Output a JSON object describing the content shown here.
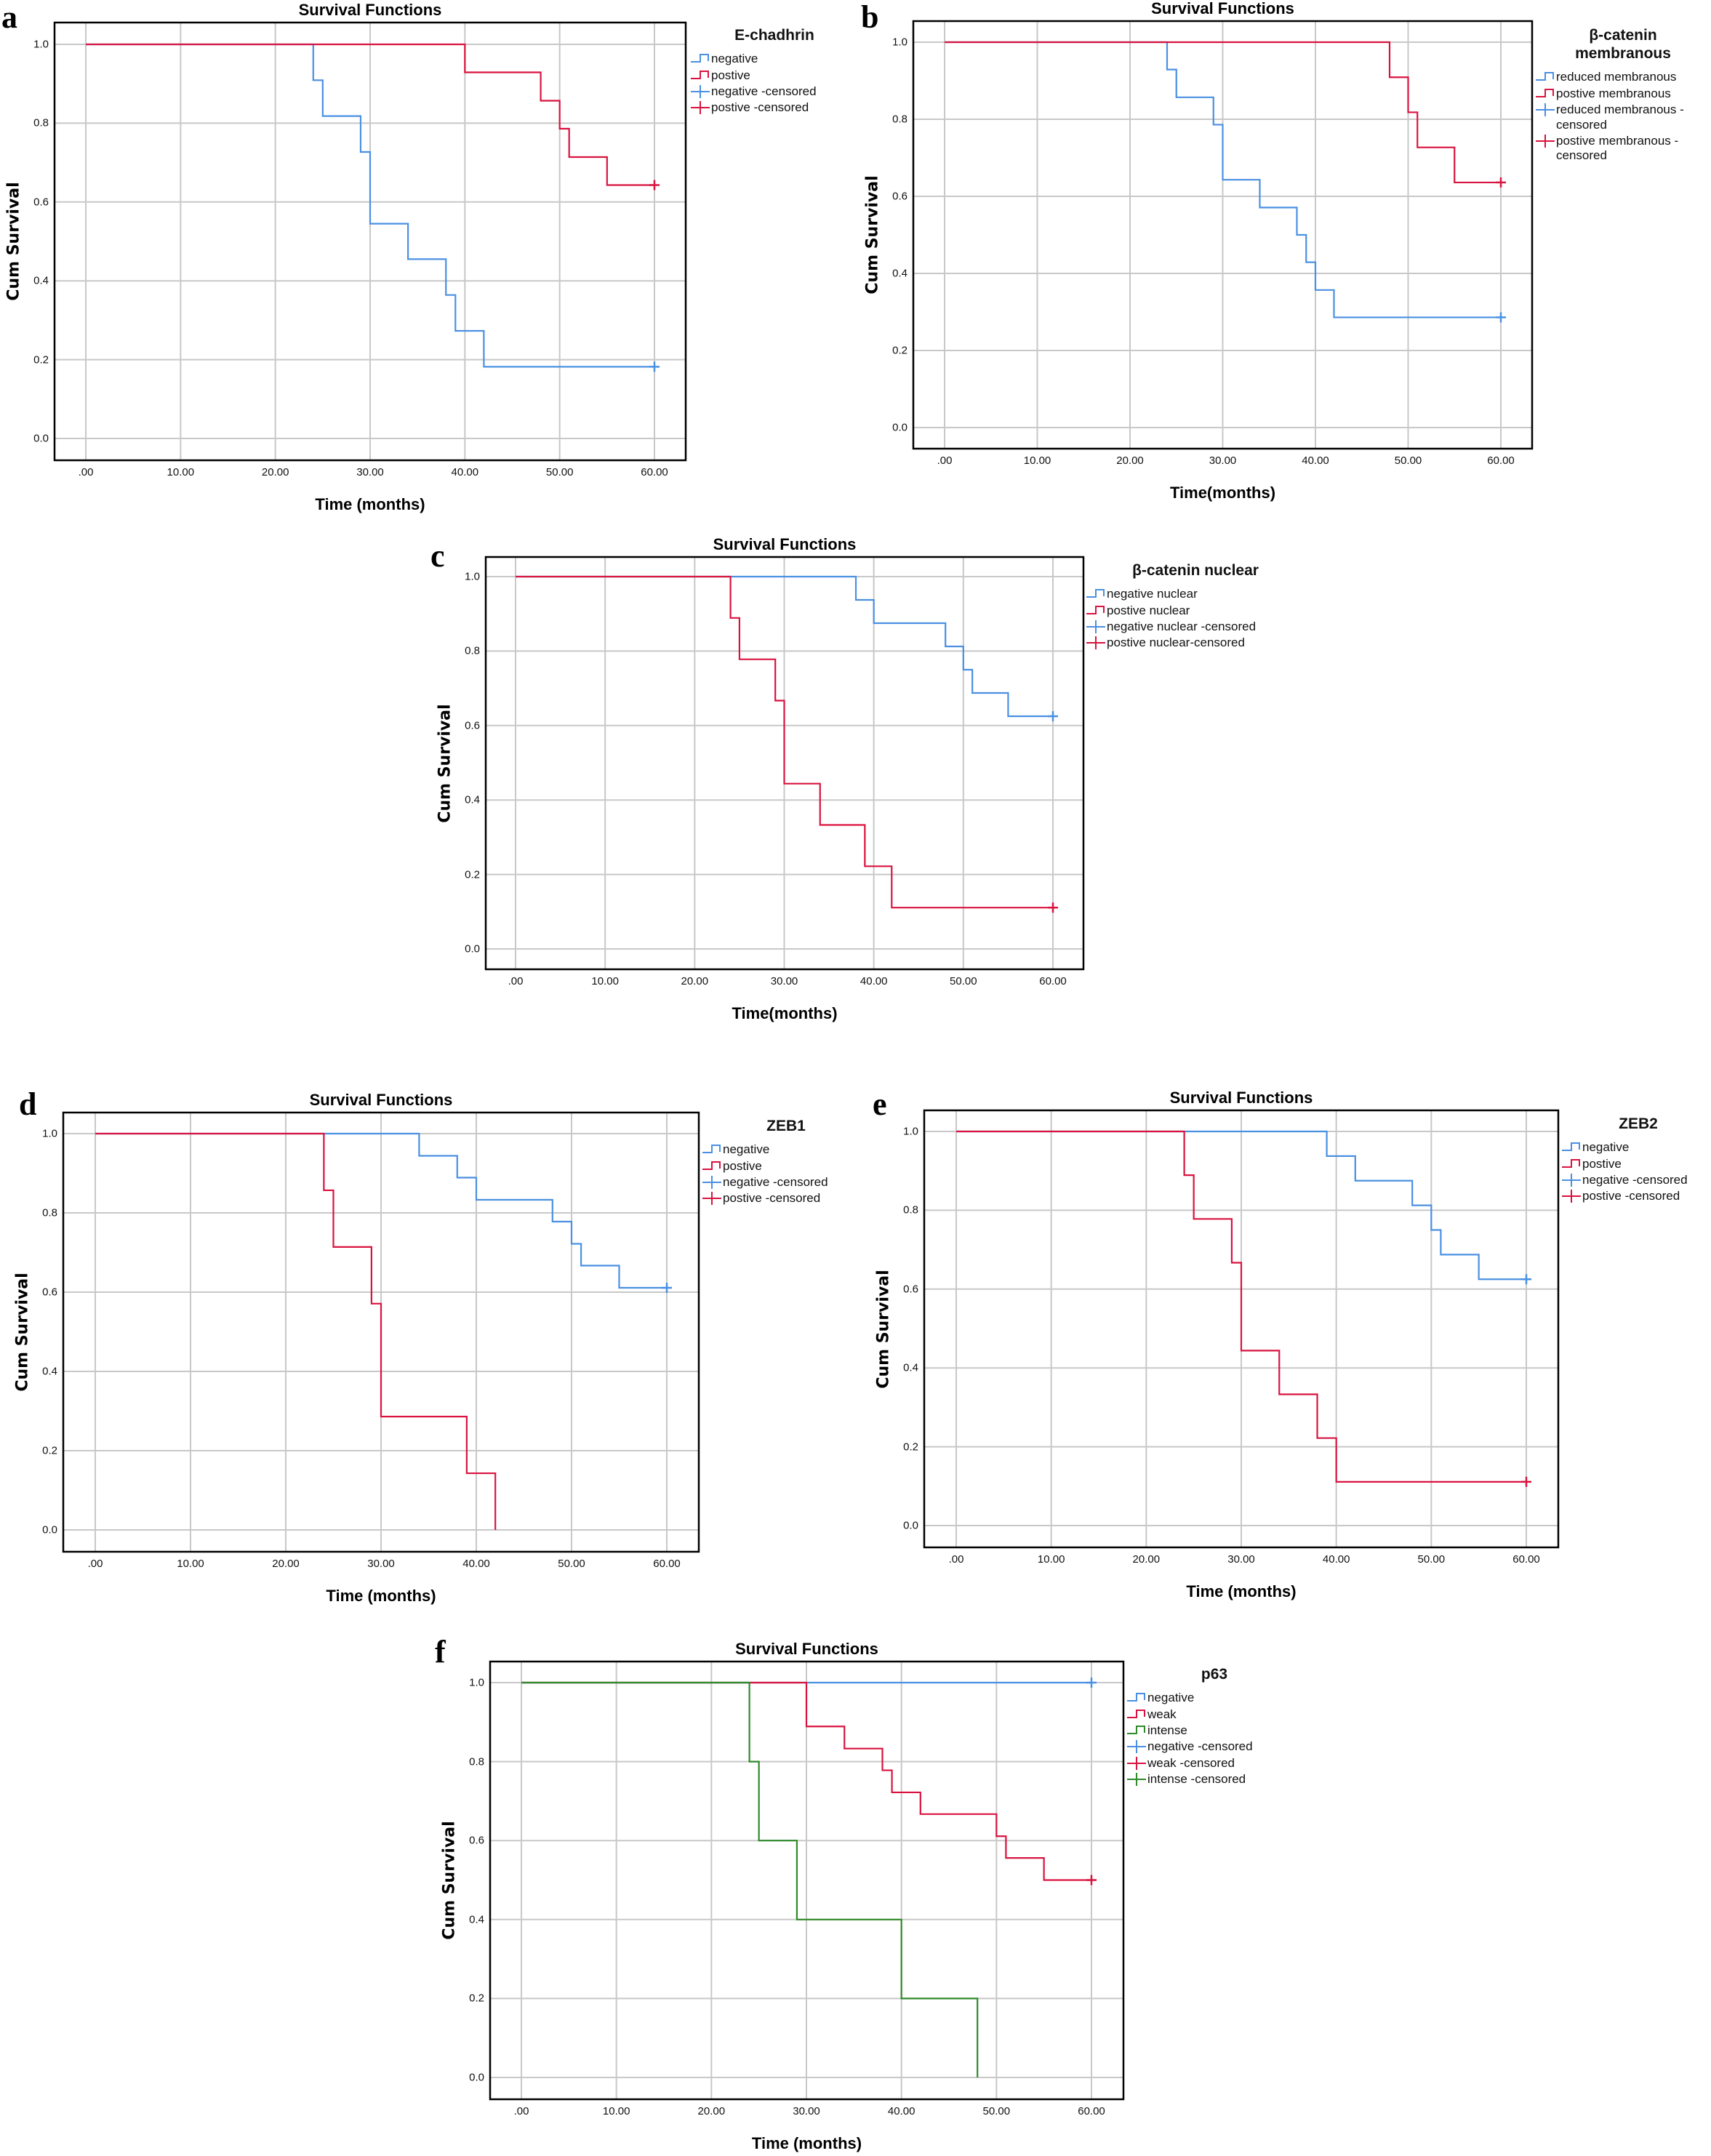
{
  "colors": {
    "blue": "#4a90e2",
    "red": "#d9133f",
    "green": "#2f8a2a",
    "grid": "#c8c8c8",
    "frame": "#000000"
  },
  "chart_data": [
    {
      "id": "a",
      "panel_label": "a",
      "type": "line",
      "step": true,
      "title": "Survival Functions",
      "xlabel": "Time (months)",
      "ylabel": "Cum Survival",
      "xlim": [
        0,
        60
      ],
      "ylim": [
        0,
        1
      ],
      "xticks": [
        ".00",
        "10.00",
        "20.00",
        "30.00",
        "40.00",
        "50.00",
        "60.00"
      ],
      "yticks": [
        "0.0",
        "0.2",
        "0.4",
        "0.6",
        "0.8",
        "1.0"
      ],
      "grid": true,
      "legend": {
        "title": "E-chadhrin",
        "placement": "right",
        "entries": [
          {
            "label": "negative",
            "kind": "step",
            "color": "blue"
          },
          {
            "label": "postive",
            "kind": "step",
            "color": "red"
          },
          {
            "label": "negative -censored",
            "kind": "censor",
            "color": "blue"
          },
          {
            "label": "postive -censored",
            "kind": "censor",
            "color": "red"
          }
        ]
      },
      "series": [
        {
          "name": "negative",
          "color": "blue",
          "x": [
            0,
            24,
            25,
            29,
            30,
            34,
            38,
            39,
            42
          ],
          "y": [
            1.0,
            0.909,
            0.818,
            0.727,
            0.545,
            0.455,
            0.364,
            0.273,
            0.182
          ],
          "end": 60,
          "censored": [
            [
              60,
              0.182
            ]
          ]
        },
        {
          "name": "postive",
          "color": "red",
          "x": [
            0,
            40,
            48,
            50,
            51,
            55
          ],
          "y": [
            1.0,
            0.929,
            0.857,
            0.786,
            0.714,
            0.643
          ],
          "end": 60,
          "censored": [
            [
              60,
              0.643
            ]
          ]
        }
      ]
    },
    {
      "id": "b",
      "panel_label": "b",
      "type": "line",
      "step": true,
      "title": "Survival Functions",
      "xlabel": "Time(months)",
      "ylabel": "Cum Survival",
      "xlim": [
        0,
        60
      ],
      "ylim": [
        0,
        1
      ],
      "xticks": [
        ".00",
        "10.00",
        "20.00",
        "30.00",
        "40.00",
        "50.00",
        "60.00"
      ],
      "yticks": [
        "0.0",
        "0.2",
        "0.4",
        "0.6",
        "0.8",
        "1.0"
      ],
      "grid": true,
      "legend": {
        "title": "β-catenin\nmembranous",
        "placement": "right",
        "entries": [
          {
            "label": "reduced membranous",
            "kind": "step",
            "color": "blue"
          },
          {
            "label": "postive membranous",
            "kind": "step",
            "color": "red"
          },
          {
            "label": "reduced membranous -\ncensored",
            "kind": "censor",
            "color": "blue"
          },
          {
            "label": "postive membranous -\ncensored",
            "kind": "censor",
            "color": "red"
          }
        ]
      },
      "series": [
        {
          "name": "reduced membranous",
          "color": "blue",
          "x": [
            0,
            24,
            25,
            29,
            30,
            34,
            38,
            39,
            40,
            42
          ],
          "y": [
            1.0,
            0.929,
            0.857,
            0.786,
            0.643,
            0.571,
            0.5,
            0.429,
            0.357,
            0.286
          ],
          "end": 60,
          "censored": [
            [
              60,
              0.286
            ]
          ]
        },
        {
          "name": "postive membranous",
          "color": "red",
          "x": [
            0,
            48,
            50,
            51,
            55
          ],
          "y": [
            1.0,
            0.909,
            0.818,
            0.727,
            0.636
          ],
          "end": 60,
          "censored": [
            [
              60,
              0.636
            ]
          ]
        }
      ]
    },
    {
      "id": "c",
      "panel_label": "c",
      "type": "line",
      "step": true,
      "title": "Survival Functions",
      "xlabel": "Time(months)",
      "ylabel": "Cum Survival",
      "xlim": [
        0,
        60
      ],
      "ylim": [
        0,
        1
      ],
      "xticks": [
        ".00",
        "10.00",
        "20.00",
        "30.00",
        "40.00",
        "50.00",
        "60.00"
      ],
      "yticks": [
        "0.0",
        "0.2",
        "0.4",
        "0.6",
        "0.8",
        "1.0"
      ],
      "grid": true,
      "legend": {
        "title": "β-catenin nuclear",
        "placement": "right",
        "entries": [
          {
            "label": "negative nuclear",
            "kind": "step",
            "color": "blue"
          },
          {
            "label": "postive nuclear",
            "kind": "step",
            "color": "red"
          },
          {
            "label": "negative nuclear -censored",
            "kind": "censor",
            "color": "blue"
          },
          {
            "label": "postive nuclear-censored",
            "kind": "censor",
            "color": "red"
          }
        ]
      },
      "series": [
        {
          "name": "negative nuclear",
          "color": "blue",
          "x": [
            0,
            38,
            40,
            48,
            50,
            51,
            55
          ],
          "y": [
            1.0,
            0.9375,
            0.875,
            0.8125,
            0.75,
            0.6875,
            0.625
          ],
          "end": 60,
          "censored": [
            [
              60,
              0.625
            ]
          ]
        },
        {
          "name": "postive nuclear",
          "color": "red",
          "x": [
            0,
            24,
            25,
            29,
            30,
            34,
            39,
            42
          ],
          "y": [
            1.0,
            0.889,
            0.778,
            0.667,
            0.444,
            0.333,
            0.222,
            0.111
          ],
          "end": 60,
          "censored": [
            [
              60,
              0.111
            ]
          ]
        }
      ]
    },
    {
      "id": "d",
      "panel_label": "d",
      "type": "line",
      "step": true,
      "title": "Survival Functions",
      "xlabel": "Time (months)",
      "ylabel": "Cum Survival",
      "xlim": [
        0,
        60
      ],
      "ylim": [
        0,
        1
      ],
      "xticks": [
        ".00",
        "10.00",
        "20.00",
        "30.00",
        "40.00",
        "50.00",
        "60.00"
      ],
      "yticks": [
        "0.0",
        "0.2",
        "0.4",
        "0.6",
        "0.8",
        "1.0"
      ],
      "grid": true,
      "legend": {
        "title": "ZEB1",
        "placement": "right",
        "entries": [
          {
            "label": "negative",
            "kind": "step",
            "color": "blue"
          },
          {
            "label": "postive",
            "kind": "step",
            "color": "red"
          },
          {
            "label": "negative -censored",
            "kind": "censor",
            "color": "blue"
          },
          {
            "label": "postive  -censored",
            "kind": "censor",
            "color": "red"
          }
        ]
      },
      "series": [
        {
          "name": "negative",
          "color": "blue",
          "x": [
            0,
            34,
            38,
            40,
            48,
            50,
            51,
            55
          ],
          "y": [
            1.0,
            0.944,
            0.889,
            0.833,
            0.778,
            0.722,
            0.667,
            0.611
          ],
          "end": 60,
          "censored": [
            [
              60,
              0.611
            ]
          ]
        },
        {
          "name": "postive",
          "color": "red",
          "x": [
            0,
            24,
            25,
            29,
            30,
            39,
            42
          ],
          "y": [
            1.0,
            0.857,
            0.714,
            0.571,
            0.286,
            0.143,
            0.0
          ],
          "end": 42,
          "censored": []
        }
      ]
    },
    {
      "id": "e",
      "panel_label": "e",
      "type": "line",
      "step": true,
      "title": "Survival Functions",
      "xlabel": "Time (months)",
      "ylabel": "Cum Survival",
      "xlim": [
        0,
        60
      ],
      "ylim": [
        0,
        1
      ],
      "xticks": [
        ".00",
        "10.00",
        "20.00",
        "30.00",
        "40.00",
        "50.00",
        "60.00"
      ],
      "yticks": [
        "0.0",
        "0.2",
        "0.4",
        "0.6",
        "0.8",
        "1.0"
      ],
      "grid": true,
      "legend": {
        "title": "ZEB2",
        "placement": "right",
        "entries": [
          {
            "label": "negative",
            "kind": "step",
            "color": "blue"
          },
          {
            "label": "postive",
            "kind": "step",
            "color": "red"
          },
          {
            "label": "negative -censored",
            "kind": "censor",
            "color": "blue"
          },
          {
            "label": "postive -censored",
            "kind": "censor",
            "color": "red"
          }
        ]
      },
      "series": [
        {
          "name": "negative",
          "color": "blue",
          "x": [
            0,
            39,
            42,
            48,
            50,
            51,
            55
          ],
          "y": [
            1.0,
            0.9375,
            0.875,
            0.8125,
            0.75,
            0.6875,
            0.625
          ],
          "end": 60,
          "censored": [
            [
              60,
              0.625
            ]
          ]
        },
        {
          "name": "postive",
          "color": "red",
          "x": [
            0,
            24,
            25,
            29,
            30,
            34,
            38,
            40
          ],
          "y": [
            1.0,
            0.889,
            0.778,
            0.667,
            0.444,
            0.333,
            0.222,
            0.111
          ],
          "end": 60,
          "censored": [
            [
              60,
              0.111
            ]
          ]
        }
      ]
    },
    {
      "id": "f",
      "panel_label": "f",
      "type": "line",
      "step": true,
      "title": "Survival Functions",
      "xlabel": "Time (months)",
      "ylabel": "Cum Survival",
      "xlim": [
        0,
        60
      ],
      "ylim": [
        0,
        1
      ],
      "xticks": [
        ".00",
        "10.00",
        "20.00",
        "30.00",
        "40.00",
        "50.00",
        "60.00"
      ],
      "yticks": [
        "0.0",
        "0.2",
        "0.4",
        "0.6",
        "0.8",
        "1.0"
      ],
      "grid": true,
      "legend": {
        "title": "p63",
        "placement": "right",
        "entries": [
          {
            "label": "negative",
            "kind": "step",
            "color": "blue"
          },
          {
            "label": "weak",
            "kind": "step",
            "color": "red"
          },
          {
            "label": "intense",
            "kind": "step",
            "color": "green"
          },
          {
            "label": "negative -censored",
            "kind": "censor",
            "color": "blue"
          },
          {
            "label": "weak -censored",
            "kind": "censor",
            "color": "red"
          },
          {
            "label": "intense -censored",
            "kind": "censor",
            "color": "green"
          }
        ]
      },
      "series": [
        {
          "name": "negative",
          "color": "blue",
          "x": [
            0
          ],
          "y": [
            1.0
          ],
          "end": 60,
          "censored": [
            [
              60,
              1.0
            ]
          ]
        },
        {
          "name": "weak",
          "color": "red",
          "x": [
            0,
            30,
            34,
            38,
            39,
            42,
            50,
            51,
            55
          ],
          "y": [
            1.0,
            0.889,
            0.833,
            0.778,
            0.722,
            0.667,
            0.611,
            0.556,
            0.5
          ],
          "end": 60,
          "censored": [
            [
              60,
              0.5
            ]
          ]
        },
        {
          "name": "intense",
          "color": "green",
          "x": [
            0,
            24,
            25,
            29,
            40,
            48
          ],
          "y": [
            1.0,
            0.8,
            0.6,
            0.4,
            0.2,
            0.0
          ],
          "end": 48,
          "censored": []
        }
      ]
    }
  ]
}
